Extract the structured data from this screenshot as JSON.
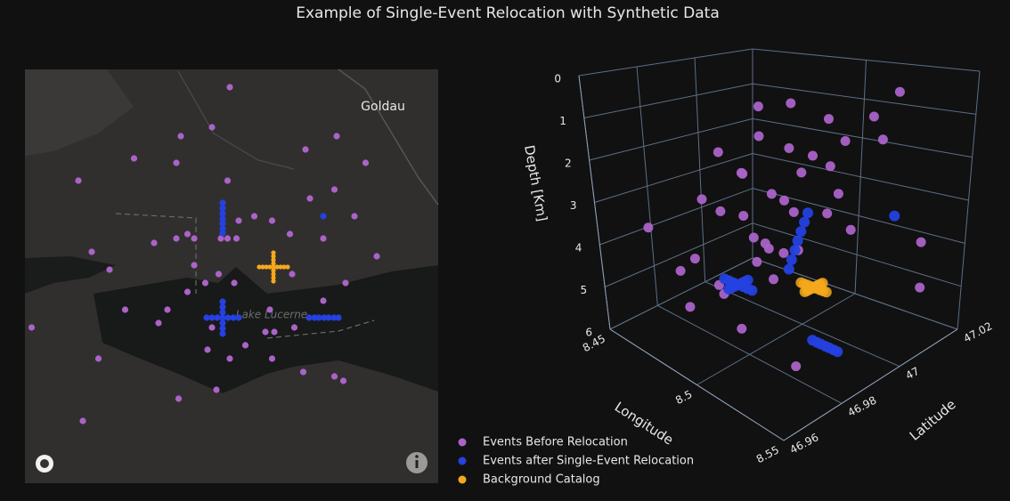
{
  "chart_data": {
    "type": "scatter3d",
    "title": "Example of Single-Event Relocation with Synthetic Data",
    "series": [
      {
        "name": "Events Before Relocation",
        "color": "#ab63c8",
        "lon": [
          8.492,
          8.484,
          8.47,
          8.449,
          8.468,
          8.54,
          8.553,
          8.424,
          8.491,
          8.526,
          8.539,
          8.528,
          8.503,
          8.548,
          8.511,
          8.519,
          8.496,
          8.473,
          8.476,
          8.458,
          8.468,
          8.488,
          8.491,
          8.495,
          8.534,
          8.43,
          8.558,
          8.476,
          8.438,
          8.487,
          8.481,
          8.494,
          8.544,
          8.52,
          8.473,
          8.534,
          8.445,
          8.464,
          8.51,
          8.521,
          8.46,
          8.484,
          8.508,
          8.512,
          8.403,
          8.482,
          8.499,
          8.433,
          8.492,
          8.511,
          8.525,
          8.539,
          8.543,
          8.486,
          8.469,
          8.426
        ],
        "lat": [
          47.036,
          47.027,
          47.025,
          47.02,
          47.019,
          47.025,
          47.019,
          47.015,
          47.015,
          47.022,
          47.013,
          47.011,
          47.007,
          47.007,
          47.006,
          47.003,
          47.006,
          47.003,
          47.002,
          47.001,
          47.002,
          47.002,
          47.002,
          47.002,
          47.002,
          46.999,
          46.998,
          46.996,
          46.995,
          46.994,
          46.992,
          46.992,
          46.992,
          46.994,
          46.99,
          46.988,
          46.986,
          46.986,
          46.986,
          46.982,
          46.983,
          46.982,
          46.981,
          46.981,
          46.982,
          46.977,
          46.978,
          46.975,
          46.975,
          46.975,
          46.972,
          46.971,
          46.97,
          46.968,
          46.966,
          46.961
        ],
        "depth": [
          1.2,
          2.1,
          3.4,
          0.8,
          2.6,
          1.9,
          4.3,
          3.1,
          1.5,
          2.8,
          3.9,
          0.5,
          2.4,
          4.6,
          1.7,
          3.6,
          2.2,
          5.1,
          1.1,
          4.0,
          2.9,
          3.3,
          0.9,
          4.4,
          1.4,
          5.3,
          2.0,
          3.7,
          4.8,
          1.6,
          2.5,
          4.1,
          0.7,
          3.0,
          5.5,
          2.3,
          1.3,
          4.7,
          3.8,
          2.7,
          5.0,
          1.8,
          3.5,
          4.2,
          0.6,
          2.8,
          5.4,
          1.0,
          4.5,
          3.2,
          2.1,
          5.2,
          1.5,
          4.9,
          3.4,
          2.6
        ]
      },
      {
        "name": "Events after Single-Event Relocation",
        "color": "#2541e0",
        "lon": [
          8.4816,
          8.484,
          8.4864,
          8.4888,
          8.4912,
          8.4936,
          8.496,
          8.4888,
          8.4888,
          8.4888,
          8.4888,
          8.4888,
          8.4888,
          8.4888,
          8.4888,
          8.4888,
          8.4888,
          8.4888,
          8.4888,
          8.4888,
          8.5276,
          8.53,
          8.532,
          8.5344,
          8.5364,
          8.5388,
          8.5408,
          8.534
        ],
        "lat": [
          46.9842,
          46.9842,
          46.9842,
          46.9842,
          46.9842,
          46.9842,
          46.9842,
          46.9878,
          46.9866,
          46.9854,
          46.983,
          46.9818,
          46.9806,
          47.01,
          47.0088,
          47.0076,
          47.0064,
          47.0054,
          47.0042,
          47.0032,
          46.9842,
          46.9842,
          46.9842,
          46.9842,
          46.9842,
          46.9842,
          46.9842,
          47.007
        ],
        "depth": [
          4.8,
          4.8,
          4.8,
          4.8,
          4.8,
          4.8,
          4.8,
          4.8,
          4.8,
          4.8,
          4.8,
          4.8,
          4.8,
          3.8,
          4.0,
          4.2,
          4.4,
          4.6,
          4.8,
          5.0,
          5.3,
          5.3,
          5.3,
          5.3,
          5.3,
          5.3,
          5.3,
          3.2
        ]
      },
      {
        "name": "Background Catalog",
        "color": "#f5a81c",
        "lon": [
          8.5052,
          8.5068,
          8.5084,
          8.51,
          8.5116,
          8.5132,
          8.5148,
          8.5164,
          8.518,
          8.5116,
          8.5116,
          8.5116,
          8.5116,
          8.5116,
          8.5116,
          8.5116,
          8.5116
        ],
        "lat": [
          46.9956,
          46.9956,
          46.9956,
          46.9956,
          46.9956,
          46.9956,
          46.9956,
          46.9956,
          46.9956,
          46.9988,
          46.998,
          46.9972,
          46.9964,
          46.9948,
          46.994,
          46.9932,
          46.9924
        ],
        "depth": [
          4.8,
          4.8,
          4.8,
          4.8,
          4.8,
          4.8,
          4.8,
          4.8,
          4.8,
          4.8,
          4.8,
          4.8,
          4.8,
          4.8,
          4.8,
          4.8,
          4.8
        ]
      }
    ],
    "xlabel": "Longitude",
    "xlim": [
      8.45,
      8.55
    ],
    "xticks": [
      8.45,
      8.5,
      8.55
    ],
    "ylabel": "Latitude",
    "ylim": [
      46.96,
      47.02
    ],
    "yticks": [
      46.96,
      46.98,
      47,
      47.02
    ],
    "zlabel": "Depth [Km]",
    "zlim": [
      0,
      6
    ],
    "zticks": [
      0,
      1,
      2,
      3,
      4,
      5,
      6
    ],
    "zreversed": true,
    "map": {
      "lonlim": [
        8.4,
        8.5856
      ],
      "latlim": [
        46.947,
        47.04
      ],
      "labels": [
        "Goldau",
        "Lake Lucerne"
      ]
    }
  }
}
